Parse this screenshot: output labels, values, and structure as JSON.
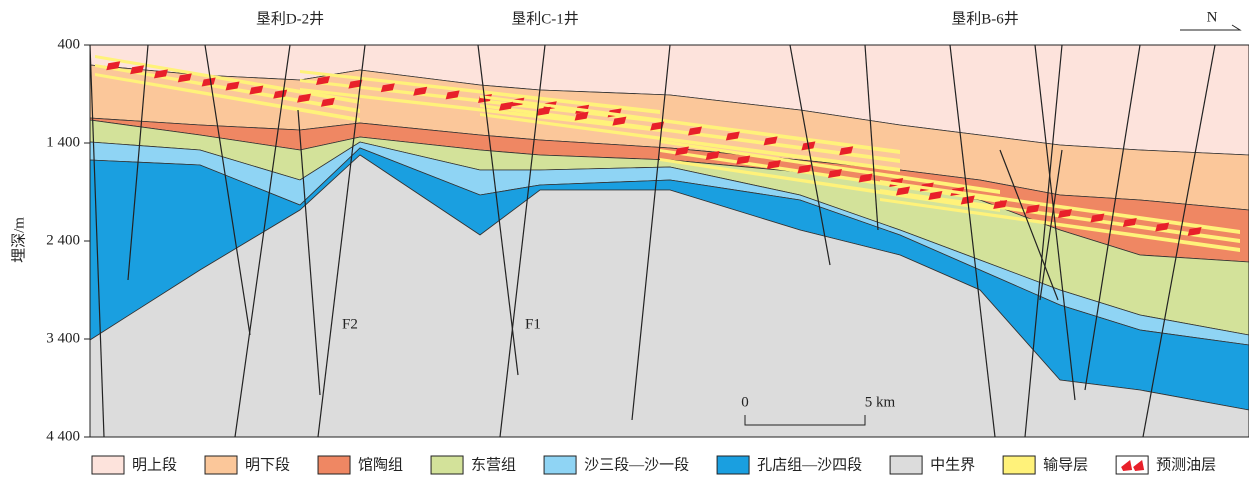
{
  "wells": [
    "垦利D-2井",
    "垦利C-1井",
    "垦利B-6井"
  ],
  "north": "N",
  "depth_axis": {
    "label": "埋深/m",
    "range": [
      400,
      4400
    ],
    "ticks": [
      400,
      {
        "value": 1400,
        "label": "1 400"
      },
      {
        "value": 2400,
        "label": "2 400"
      },
      {
        "value": 3400,
        "label": "3 400"
      },
      {
        "value": 4400,
        "label": "4 400"
      }
    ]
  },
  "faults": [
    "F2",
    "F1"
  ],
  "scale_bar": {
    "start": "0",
    "end": "5 km"
  },
  "legend": [
    {
      "label": "明上段",
      "color": "#fde3dc"
    },
    {
      "label": "明下段",
      "color": "#fbc79a"
    },
    {
      "label": "馆陶组",
      "color": "#ef8763"
    },
    {
      "label": "东营组",
      "color": "#d3e29a"
    },
    {
      "label": "沙三段—沙一段",
      "color": "#8fd4f4"
    },
    {
      "label": "孔店组—沙四段",
      "color": "#1a9fe0"
    },
    {
      "label": "中生界",
      "color": "#dcdcdc"
    },
    {
      "label": "输导层",
      "color": "#fff27a"
    },
    {
      "label": "预测油层",
      "color": "#e8202a"
    }
  ]
}
